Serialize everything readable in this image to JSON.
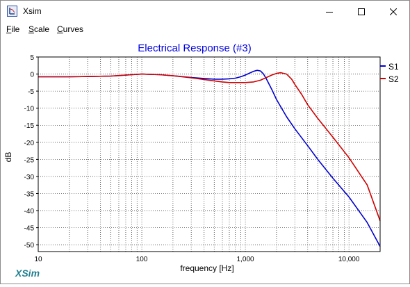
{
  "window": {
    "title": "Xsim",
    "app_icon": "xsim-app-icon",
    "controls": [
      "minimize-icon",
      "maximize-icon",
      "close-icon"
    ]
  },
  "menu": {
    "items": [
      {
        "label": "File",
        "accel": "F",
        "rest": "ile"
      },
      {
        "label": "Scale",
        "accel": "S",
        "rest": "cale"
      },
      {
        "label": "Curves",
        "accel": "C",
        "rest": "urves"
      }
    ]
  },
  "branding": {
    "logo_text": "XSim",
    "logo_color": "#1f7f8f"
  },
  "chart_data": {
    "type": "line",
    "title": "Electrical Response (#3)",
    "title_color": "#0000e0",
    "xlabel": "frequency [Hz]",
    "ylabel": "dB",
    "x_scale": "log",
    "xlim": [
      10,
      20000
    ],
    "ylim": [
      -52,
      5
    ],
    "x_ticks": [
      {
        "value": 10,
        "label": "10"
      },
      {
        "value": 100,
        "label": "100"
      },
      {
        "value": 1000,
        "label": "1,000"
      },
      {
        "value": 10000,
        "label": "10,000"
      }
    ],
    "y_ticks": [
      5,
      0,
      -5,
      -10,
      -15,
      -20,
      -25,
      -30,
      -35,
      -40,
      -45,
      -50
    ],
    "grid": true,
    "legend_position": "right",
    "series": [
      {
        "name": "S1",
        "color": "#0000d0",
        "x": [
          10,
          20,
          50,
          80,
          100,
          150,
          200,
          300,
          400,
          500,
          600,
          700,
          800,
          900,
          1000,
          1100,
          1200,
          1300,
          1400,
          1500,
          1600,
          1800,
          2000,
          2500,
          3000,
          4000,
          5000,
          7000,
          10000,
          15000,
          20000
        ],
        "y": [
          -0.8,
          -0.8,
          -0.6,
          -0.2,
          0.0,
          -0.2,
          -0.5,
          -1.0,
          -1.3,
          -1.5,
          -1.5,
          -1.4,
          -1.2,
          -0.8,
          -0.3,
          0.3,
          0.8,
          1.1,
          0.9,
          0.0,
          -1.5,
          -4.5,
          -7.5,
          -12.5,
          -16.0,
          -21.0,
          -25.0,
          -30.5,
          -36.0,
          -43.5,
          -50.5
        ]
      },
      {
        "name": "S2",
        "color": "#d00000",
        "x": [
          10,
          20,
          50,
          80,
          100,
          150,
          200,
          300,
          400,
          500,
          600,
          700,
          800,
          1000,
          1200,
          1400,
          1600,
          1800,
          2000,
          2200,
          2500,
          2800,
          3000,
          3500,
          4000,
          5000,
          7000,
          10000,
          15000,
          20000
        ],
        "y": [
          -0.8,
          -0.8,
          -0.6,
          -0.2,
          0.0,
          -0.2,
          -0.5,
          -1.1,
          -1.6,
          -2.0,
          -2.3,
          -2.5,
          -2.5,
          -2.5,
          -2.3,
          -1.8,
          -1.0,
          -0.3,
          0.2,
          0.4,
          0.0,
          -1.5,
          -3.0,
          -6.0,
          -9.0,
          -13.0,
          -18.5,
          -24.5,
          -32.5,
          -43.0
        ]
      }
    ]
  }
}
